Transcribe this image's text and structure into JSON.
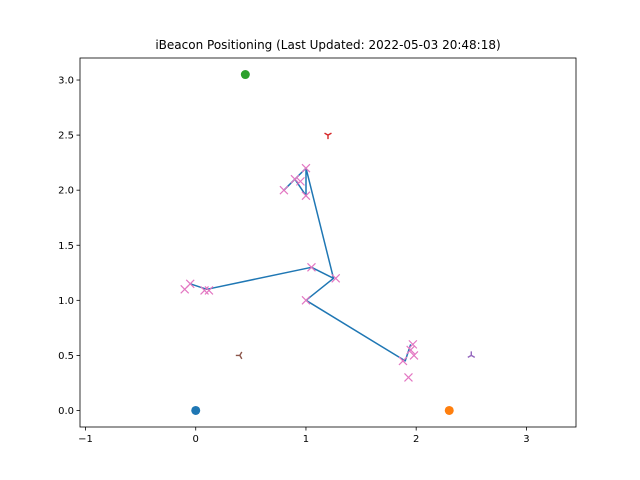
{
  "chart_data": {
    "type": "scatter",
    "title": "iBeacon Positioning (Last Updated: 2022-05-03 20:48:18)",
    "xlabel": "",
    "ylabel": "",
    "xlim": [
      -1.05,
      3.45
    ],
    "ylim": [
      -0.15,
      3.2
    ],
    "x_ticks": [
      -1,
      0,
      1,
      2,
      3
    ],
    "x_tick_labels": [
      "−1",
      "0",
      "1",
      "2",
      "3"
    ],
    "y_ticks": [
      0.0,
      0.5,
      1.0,
      1.5,
      2.0,
      2.5,
      3.0
    ],
    "y_tick_labels": [
      "0.0",
      "0.5",
      "1.0",
      "1.5",
      "2.0",
      "2.5",
      "3.0"
    ],
    "grid": false,
    "beacons": [
      {
        "x": 0.0,
        "y": 0.0,
        "color": "#1f77b4",
        "marker": "circle"
      },
      {
        "x": 2.3,
        "y": 0.0,
        "color": "#ff7f0e",
        "marker": "circle"
      },
      {
        "x": 0.45,
        "y": 3.05,
        "color": "#2ca02c",
        "marker": "circle"
      }
    ],
    "tri_markers": [
      {
        "x": 1.2,
        "y": 2.5,
        "color": "#d62728",
        "marker": "tri-down"
      },
      {
        "x": 0.4,
        "y": 0.5,
        "color": "#8c564b",
        "marker": "tri-left"
      },
      {
        "x": 2.5,
        "y": 0.5,
        "color": "#9467bd",
        "marker": "tri-up"
      }
    ],
    "path": {
      "color": "#1f77b4",
      "points": [
        {
          "x": 1.95,
          "y": 0.6
        },
        {
          "x": 1.9,
          "y": 0.45
        },
        {
          "x": 1.0,
          "y": 1.0
        },
        {
          "x": 1.25,
          "y": 1.2
        },
        {
          "x": 1.0,
          "y": 2.2
        },
        {
          "x": 0.8,
          "y": 2.0
        },
        {
          "x": 0.9,
          "y": 2.1
        },
        {
          "x": 1.0,
          "y": 1.95
        },
        {
          "x": 1.0,
          "y": 2.2
        },
        {
          "x": 1.25,
          "y": 1.2
        },
        {
          "x": 1.05,
          "y": 1.3
        },
        {
          "x": 0.1,
          "y": 1.1
        },
        {
          "x": -0.05,
          "y": 1.15
        },
        {
          "x": 0.1,
          "y": 1.1
        }
      ]
    },
    "measurements": {
      "color": "#e377c2",
      "marker": "x",
      "points": [
        {
          "x": -0.1,
          "y": 1.1
        },
        {
          "x": -0.05,
          "y": 1.15
        },
        {
          "x": 0.08,
          "y": 1.09
        },
        {
          "x": 0.12,
          "y": 1.09
        },
        {
          "x": 1.0,
          "y": 1.0
        },
        {
          "x": 1.05,
          "y": 1.3
        },
        {
          "x": 1.27,
          "y": 1.2
        },
        {
          "x": 0.8,
          "y": 2.0
        },
        {
          "x": 0.9,
          "y": 2.1
        },
        {
          "x": 0.95,
          "y": 2.08
        },
        {
          "x": 1.0,
          "y": 2.2
        },
        {
          "x": 1.0,
          "y": 1.95
        },
        {
          "x": 1.88,
          "y": 0.45
        },
        {
          "x": 1.93,
          "y": 0.3
        },
        {
          "x": 1.95,
          "y": 0.55
        },
        {
          "x": 1.97,
          "y": 0.6
        },
        {
          "x": 1.98,
          "y": 0.5
        }
      ]
    }
  }
}
